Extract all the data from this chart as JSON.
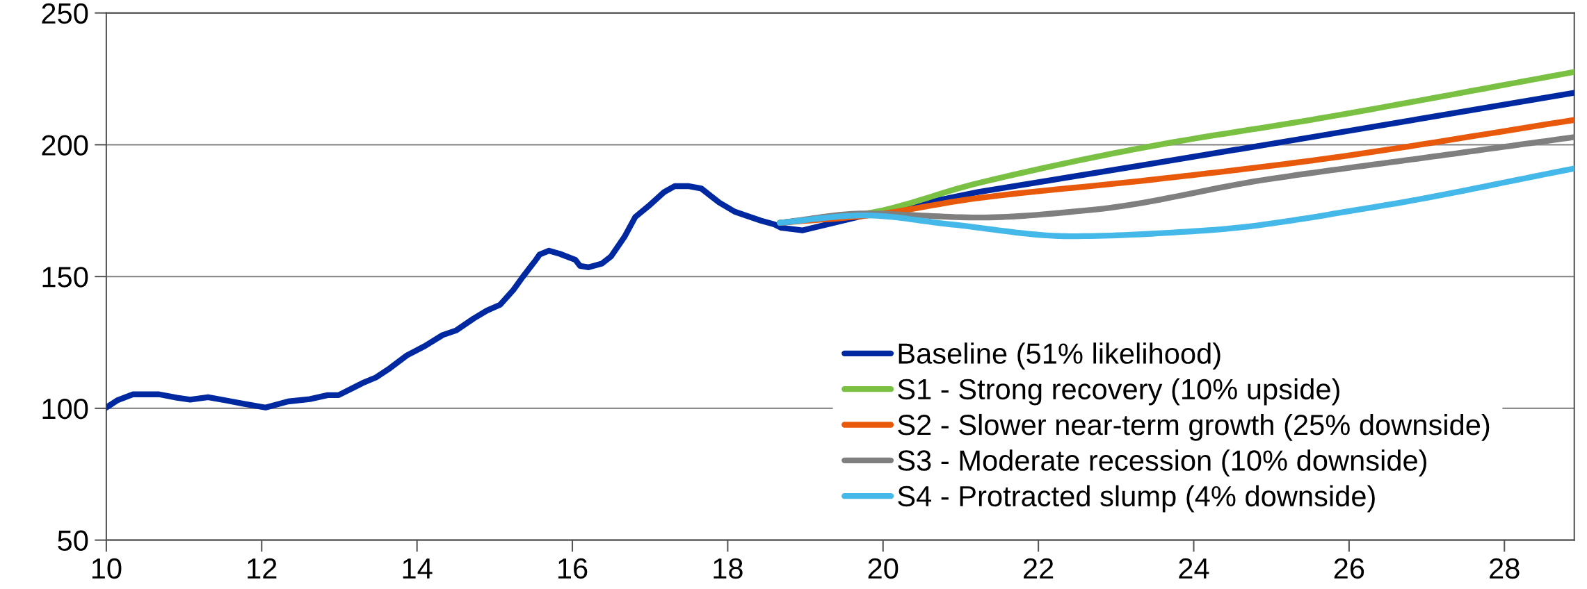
{
  "chart_data": {
    "type": "line",
    "xlim": [
      10,
      28.9
    ],
    "xticks": [
      10,
      12,
      14,
      16,
      18,
      20,
      22,
      24,
      26,
      28
    ],
    "ylim": [
      50,
      250
    ],
    "yticks": [
      50,
      100,
      150,
      200,
      250
    ],
    "grid": "y",
    "legend": "bottom right",
    "marker": "none",
    "line_style": "solid",
    "series": [
      {
        "name": "Baseline (51% likelihood)",
        "color": "#0028a0",
        "x": [
          10.0,
          10.14,
          10.34,
          10.68,
          10.91,
          11.08,
          11.31,
          11.54,
          11.77,
          12.05,
          12.34,
          12.62,
          12.85,
          12.99,
          13.3,
          13.47,
          13.65,
          13.87,
          14.1,
          14.33,
          14.5,
          14.73,
          14.9,
          15.07,
          15.24,
          15.36,
          15.53,
          15.58,
          15.7,
          15.84,
          16.04,
          16.1,
          16.21,
          16.38,
          16.5,
          16.67,
          16.81,
          16.98,
          17.18,
          17.32,
          17.49,
          17.66,
          17.89,
          18.09,
          18.26,
          18.43,
          18.6,
          18.69,
          18.96,
          19.76,
          21.23,
          23.42,
          25.62,
          28.9
        ],
        "values": [
          100.3,
          103,
          105.3,
          105.3,
          104,
          103.3,
          104.2,
          103,
          101.7,
          100.3,
          102.6,
          103.5,
          105,
          105,
          109.6,
          111.7,
          115.2,
          120.1,
          123.6,
          127.8,
          129.5,
          134.1,
          137.1,
          139.3,
          144.9,
          149.8,
          156.3,
          158.4,
          159.8,
          158.6,
          156.3,
          154,
          153.5,
          154.9,
          157.7,
          165,
          172.6,
          176.7,
          182,
          184.3,
          184.3,
          183.4,
          178.1,
          174.6,
          172.9,
          171.2,
          169.8,
          168.5,
          167.5,
          173.2,
          182.1,
          192.6,
          203.4,
          219.7
        ]
      },
      {
        "name": "S1 - Strong recovery (10% upside)",
        "color": "#7ac143",
        "x": [
          18.67,
          19.76,
          21.23,
          23.42,
          25.62,
          28.9
        ],
        "values": [
          170.4,
          173.8,
          185.5,
          199.3,
          210,
          227.6
        ]
      },
      {
        "name": "S2 - Slower near-term growth (25% downside)",
        "color": "#e8590c",
        "x": [
          18.67,
          19.76,
          21.23,
          23.42,
          25.62,
          28.9
        ],
        "values": [
          170.4,
          173,
          179.8,
          186.6,
          194.4,
          209.4
        ]
      },
      {
        "name": "S3 - Moderate recession (10% downside)",
        "color": "#7f7f7f",
        "x": [
          18.67,
          19.76,
          21.23,
          22.69,
          24.89,
          27.08,
          28.9
        ],
        "values": [
          170.4,
          173.9,
          172.4,
          175.3,
          186.6,
          195.5,
          202.9
        ]
      },
      {
        "name": "S4 - Protracted slump (4% downside)",
        "color": "#44b8e8",
        "x": [
          18.67,
          19.76,
          20.87,
          22.41,
          24.16,
          26.35,
          28.9
        ],
        "values": [
          170.4,
          173.2,
          169.8,
          165.3,
          167.5,
          176.5,
          191
        ]
      }
    ]
  }
}
